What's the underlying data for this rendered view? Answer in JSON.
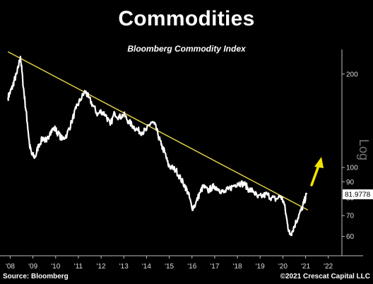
{
  "header": {
    "title": "Commodities",
    "subtitle": "Bloomberg Commodity Index"
  },
  "footer": {
    "source": "Source: Bloomberg",
    "copyright": "©2021 Crescat Capital LLC"
  },
  "chart_data": {
    "type": "line",
    "title": "Commodities",
    "subtitle": "Bloomberg Commodity Index",
    "xlabel": "",
    "ylabel": "Log",
    "y_scale": "log",
    "ylim": [
      52,
      240
    ],
    "y_ticks": [
      60,
      70,
      80,
      90,
      100,
      200
    ],
    "x_ticks": [
      "'08",
      "'09",
      "'10",
      "'11",
      "'12",
      "'13",
      "'14",
      "'15",
      "'16",
      "'17",
      "'18",
      "'19",
      "'20",
      "'21",
      "'22"
    ],
    "last_value_label": "81.9778",
    "colors": {
      "series": "#ffffff",
      "trendline": "#e8d84a",
      "arrow": "#f2e600"
    },
    "series": [
      {
        "values": [
          [
            2007.9,
            168
          ],
          [
            2008.0,
            175
          ],
          [
            2008.1,
            182
          ],
          [
            2008.2,
            193
          ],
          [
            2008.3,
            201
          ],
          [
            2008.45,
            228
          ],
          [
            2008.55,
            190
          ],
          [
            2008.65,
            162
          ],
          [
            2008.75,
            140
          ],
          [
            2008.85,
            118
          ],
          [
            2008.95,
            110
          ],
          [
            2009.1,
            108
          ],
          [
            2009.25,
            118
          ],
          [
            2009.45,
            125
          ],
          [
            2009.6,
            121
          ],
          [
            2009.75,
            130
          ],
          [
            2009.95,
            134
          ],
          [
            2010.1,
            129
          ],
          [
            2010.3,
            123
          ],
          [
            2010.5,
            128
          ],
          [
            2010.7,
            140
          ],
          [
            2010.9,
            155
          ],
          [
            2011.1,
            166
          ],
          [
            2011.3,
            176
          ],
          [
            2011.45,
            168
          ],
          [
            2011.65,
            158
          ],
          [
            2011.85,
            148
          ],
          [
            2012.0,
            152
          ],
          [
            2012.2,
            148
          ],
          [
            2012.4,
            137
          ],
          [
            2012.6,
            150
          ],
          [
            2012.8,
            145
          ],
          [
            2013.0,
            148
          ],
          [
            2013.2,
            141
          ],
          [
            2013.4,
            136
          ],
          [
            2013.6,
            132
          ],
          [
            2013.8,
            130
          ],
          [
            2014.0,
            132
          ],
          [
            2014.2,
            140
          ],
          [
            2014.35,
            138
          ],
          [
            2014.5,
            128
          ],
          [
            2014.65,
            118
          ],
          [
            2014.8,
            112
          ],
          [
            2014.95,
            102
          ],
          [
            2015.1,
            100
          ],
          [
            2015.3,
            98
          ],
          [
            2015.5,
            92
          ],
          [
            2015.7,
            87
          ],
          [
            2015.85,
            82
          ],
          [
            2016.0,
            74
          ],
          [
            2016.15,
            76
          ],
          [
            2016.35,
            83
          ],
          [
            2016.5,
            87
          ],
          [
            2016.7,
            84
          ],
          [
            2016.85,
            86
          ],
          [
            2017.0,
            87
          ],
          [
            2017.2,
            85
          ],
          [
            2017.4,
            83
          ],
          [
            2017.6,
            85
          ],
          [
            2017.8,
            87
          ],
          [
            2018.0,
            89
          ],
          [
            2018.15,
            89
          ],
          [
            2018.35,
            88
          ],
          [
            2018.5,
            85
          ],
          [
            2018.7,
            84
          ],
          [
            2018.9,
            80
          ],
          [
            2019.1,
            81
          ],
          [
            2019.3,
            82
          ],
          [
            2019.5,
            80
          ],
          [
            2019.7,
            79
          ],
          [
            2019.9,
            81
          ],
          [
            2020.05,
            77
          ],
          [
            2020.2,
            66
          ],
          [
            2020.3,
            61
          ],
          [
            2020.4,
            62
          ],
          [
            2020.55,
            66
          ],
          [
            2020.7,
            70
          ],
          [
            2020.85,
            74
          ],
          [
            2020.95,
            78
          ],
          [
            2021.05,
            81.9778
          ]
        ]
      }
    ],
    "trendline": [
      [
        2007.9,
        236
      ],
      [
        2021.1,
        73
      ]
    ],
    "annotations": [
      "81.9778"
    ]
  }
}
